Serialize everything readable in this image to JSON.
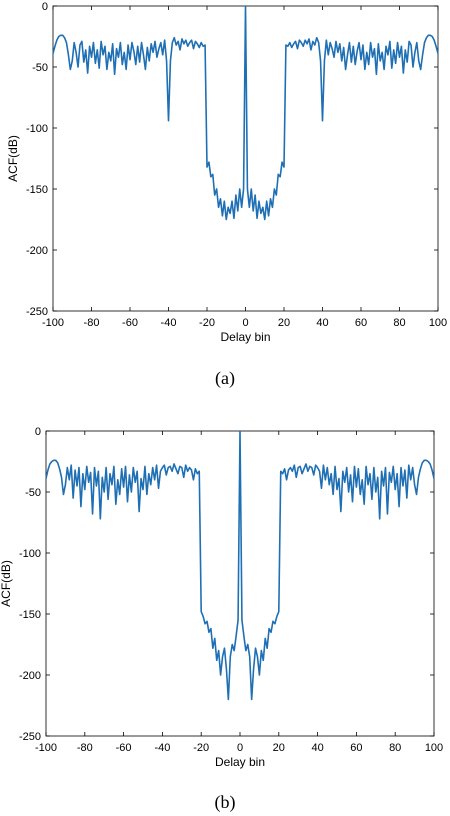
{
  "colors": {
    "line": "#1f6fb4",
    "axes": "#000000",
    "background": "#ffffff"
  },
  "chart_data": [
    {
      "type": "line",
      "caption": "(a)",
      "xlabel": "Delay bin",
      "ylabel": "ACF(dB)",
      "xlim": [
        -100,
        100
      ],
      "ylim": [
        -250,
        0
      ],
      "xticks": [
        -100,
        -80,
        -60,
        -40,
        -20,
        0,
        20,
        40,
        60,
        80,
        100
      ],
      "yticks": [
        0,
        -50,
        -100,
        -150,
        -200,
        -250
      ],
      "grid": false,
      "legend": false,
      "series": [
        {
          "x": [
            -100,
            -99,
            -98,
            -97,
            -96,
            -95,
            -94,
            -93,
            -92,
            -91,
            -90,
            -89,
            -88,
            -87,
            -86,
            -85,
            -84,
            -83,
            -82,
            -81,
            -80,
            -79,
            -78,
            -77,
            -76,
            -75,
            -74,
            -73,
            -72,
            -71,
            -70,
            -69,
            -68,
            -67,
            -66,
            -65,
            -64,
            -63,
            -62,
            -61,
            -60,
            -59,
            -58,
            -57,
            -56,
            -55,
            -54,
            -53,
            -52,
            -51,
            -50,
            -49,
            -48,
            -47,
            -46,
            -45,
            -44,
            -43,
            -42,
            -41,
            -40,
            -39,
            -38,
            -37,
            -36,
            -35,
            -34,
            -33,
            -32,
            -31,
            -30,
            -29,
            -28,
            -27,
            -26,
            -25,
            -24,
            -23,
            -22,
            -21,
            -20,
            -19,
            -18,
            -17,
            -16,
            -15,
            -14,
            -13,
            -12,
            -11,
            -10,
            -9,
            -8,
            -7,
            -6,
            -5,
            -4,
            -3,
            -2,
            -1,
            0,
            1,
            2,
            3,
            4,
            5,
            6,
            7,
            8,
            9,
            10,
            11,
            12,
            13,
            14,
            15,
            16,
            17,
            18,
            19,
            20,
            21,
            22,
            23,
            24,
            25,
            26,
            27,
            28,
            29,
            30,
            31,
            32,
            33,
            34,
            35,
            36,
            37,
            38,
            39,
            40,
            41,
            42,
            43,
            44,
            45,
            46,
            47,
            48,
            49,
            50,
            51,
            52,
            53,
            54,
            55,
            56,
            57,
            58,
            59,
            60,
            61,
            62,
            63,
            64,
            65,
            66,
            67,
            68,
            69,
            70,
            71,
            72,
            73,
            74,
            75,
            76,
            77,
            78,
            79,
            80,
            81,
            82,
            83,
            84,
            85,
            86,
            87,
            88,
            89,
            90,
            91,
            92,
            93,
            94,
            95,
            96,
            97,
            98,
            99,
            100
          ],
          "y": [
            -39,
            -33,
            -28,
            -25,
            -24,
            -24,
            -26,
            -30,
            -40,
            -52,
            -45,
            -30,
            -38,
            -50,
            -32,
            -29,
            -46,
            -36,
            -55,
            -33,
            -42,
            -30,
            -47,
            -36,
            -51,
            -29,
            -40,
            -33,
            -52,
            -38,
            -45,
            -31,
            -56,
            -35,
            -42,
            -30,
            -48,
            -38,
            -52,
            -32,
            -44,
            -30,
            -37,
            -48,
            -33,
            -46,
            -30,
            -40,
            -52,
            -34,
            -45,
            -31,
            -38,
            -29,
            -42,
            -35,
            -30,
            -40,
            -28,
            -45,
            -94,
            -45,
            -30,
            -26,
            -32,
            -29,
            -36,
            -27,
            -31,
            -28,
            -33,
            -30,
            -28,
            -35,
            -29,
            -31,
            -34,
            -30,
            -33,
            -32,
            -132,
            -128,
            -140,
            -138,
            -155,
            -150,
            -165,
            -158,
            -172,
            -160,
            -175,
            -165,
            -170,
            -160,
            -174,
            -155,
            -168,
            -150,
            -165,
            -150,
            0,
            -150,
            -165,
            -150,
            -168,
            -155,
            -174,
            -160,
            -170,
            -165,
            -175,
            -160,
            -172,
            -158,
            -165,
            -150,
            -155,
            -138,
            -140,
            -128,
            -132,
            -32,
            -33,
            -30,
            -34,
            -31,
            -29,
            -35,
            -28,
            -30,
            -33,
            -28,
            -31,
            -27,
            -36,
            -29,
            -32,
            -26,
            -30,
            -45,
            -94,
            -45,
            -28,
            -40,
            -30,
            -35,
            -42,
            -29,
            -38,
            -31,
            -45,
            -34,
            -52,
            -40,
            -30,
            -46,
            -33,
            -48,
            -37,
            -30,
            -44,
            -32,
            -52,
            -38,
            -48,
            -30,
            -42,
            -35,
            -56,
            -31,
            -45,
            -38,
            -52,
            -33,
            -40,
            -29,
            -51,
            -36,
            -47,
            -30,
            -42,
            -33,
            -55,
            -36,
            -46,
            -29,
            -32,
            -50,
            -38,
            -30,
            -45,
            -52,
            -40,
            -30,
            -26,
            -24,
            -24,
            -25,
            -28,
            -33,
            -39
          ]
        }
      ]
    },
    {
      "type": "line",
      "caption": "(b)",
      "xlabel": "Delay bin",
      "ylabel": "ACF(dB)",
      "xlim": [
        -100,
        100
      ],
      "ylim": [
        -250,
        0
      ],
      "xticks": [
        -100,
        -80,
        -60,
        -40,
        -20,
        0,
        20,
        40,
        60,
        80,
        100
      ],
      "yticks": [
        0,
        -50,
        -100,
        -150,
        -200,
        -250
      ],
      "grid": false,
      "legend": false,
      "series": [
        {
          "x": [
            -100,
            -99,
            -98,
            -97,
            -96,
            -95,
            -94,
            -93,
            -92,
            -91,
            -90,
            -89,
            -88,
            -87,
            -86,
            -85,
            -84,
            -83,
            -82,
            -81,
            -80,
            -79,
            -78,
            -77,
            -76,
            -75,
            -74,
            -73,
            -72,
            -71,
            -70,
            -69,
            -68,
            -67,
            -66,
            -65,
            -64,
            -63,
            -62,
            -61,
            -60,
            -59,
            -58,
            -57,
            -56,
            -55,
            -54,
            -53,
            -52,
            -51,
            -50,
            -49,
            -48,
            -47,
            -46,
            -45,
            -44,
            -43,
            -42,
            -41,
            -40,
            -39,
            -38,
            -37,
            -36,
            -35,
            -34,
            -33,
            -32,
            -31,
            -30,
            -29,
            -28,
            -27,
            -26,
            -25,
            -24,
            -23,
            -22,
            -21,
            -20,
            -19,
            -18,
            -17,
            -16,
            -15,
            -14,
            -13,
            -12,
            -11,
            -10,
            -9,
            -8,
            -7,
            -6,
            -5,
            -4,
            -3,
            -2,
            -1,
            0,
            1,
            2,
            3,
            4,
            5,
            6,
            7,
            8,
            9,
            10,
            11,
            12,
            13,
            14,
            15,
            16,
            17,
            18,
            19,
            20,
            21,
            22,
            23,
            24,
            25,
            26,
            27,
            28,
            29,
            30,
            31,
            32,
            33,
            34,
            35,
            36,
            37,
            38,
            39,
            40,
            41,
            42,
            43,
            44,
            45,
            46,
            47,
            48,
            49,
            50,
            51,
            52,
            53,
            54,
            55,
            56,
            57,
            58,
            59,
            60,
            61,
            62,
            63,
            64,
            65,
            66,
            67,
            68,
            69,
            70,
            71,
            72,
            73,
            74,
            75,
            76,
            77,
            78,
            79,
            80,
            81,
            82,
            83,
            84,
            85,
            86,
            87,
            88,
            89,
            90,
            91,
            92,
            93,
            94,
            95,
            96,
            97,
            98,
            99,
            100
          ],
          "y": [
            -39,
            -32,
            -27,
            -25,
            -24,
            -24,
            -26,
            -31,
            -38,
            -52,
            -44,
            -30,
            -40,
            -28,
            -55,
            -32,
            -45,
            -30,
            -62,
            -35,
            -48,
            -29,
            -42,
            -34,
            -68,
            -30,
            -45,
            -33,
            -72,
            -38,
            -50,
            -30,
            -56,
            -35,
            -44,
            -29,
            -60,
            -40,
            -52,
            -31,
            -46,
            -29,
            -58,
            -36,
            -50,
            -30,
            -42,
            -33,
            -66,
            -39,
            -48,
            -29,
            -52,
            -35,
            -44,
            -30,
            -40,
            -28,
            -47,
            -33,
            -30,
            -28,
            -36,
            -30,
            -29,
            -33,
            -27,
            -31,
            -35,
            -29,
            -30,
            -38,
            -28,
            -33,
            -30,
            -32,
            -40,
            -31,
            -35,
            -33,
            -148,
            -152,
            -158,
            -156,
            -165,
            -162,
            -178,
            -170,
            -188,
            -180,
            -200,
            -185,
            -178,
            -195,
            -220,
            -185,
            -175,
            -180,
            -168,
            -155,
            0,
            -155,
            -168,
            -180,
            -175,
            -185,
            -220,
            -195,
            -178,
            -185,
            -200,
            -180,
            -188,
            -170,
            -178,
            -162,
            -165,
            -156,
            -158,
            -152,
            -148,
            -33,
            -35,
            -31,
            -40,
            -32,
            -30,
            -33,
            -28,
            -38,
            -30,
            -29,
            -35,
            -31,
            -27,
            -33,
            -29,
            -30,
            -36,
            -28,
            -30,
            -33,
            -47,
            -28,
            -40,
            -30,
            -44,
            -35,
            -52,
            -29,
            -48,
            -39,
            -66,
            -33,
            -42,
            -30,
            -50,
            -36,
            -58,
            -29,
            -46,
            -31,
            -52,
            -40,
            -60,
            -29,
            -44,
            -35,
            -56,
            -30,
            -50,
            -38,
            -72,
            -33,
            -45,
            -30,
            -68,
            -34,
            -42,
            -29,
            -48,
            -35,
            -62,
            -30,
            -45,
            -32,
            -55,
            -28,
            -40,
            -30,
            -44,
            -52,
            -38,
            -31,
            -26,
            -24,
            -24,
            -25,
            -27,
            -32,
            -39
          ]
        }
      ]
    }
  ]
}
